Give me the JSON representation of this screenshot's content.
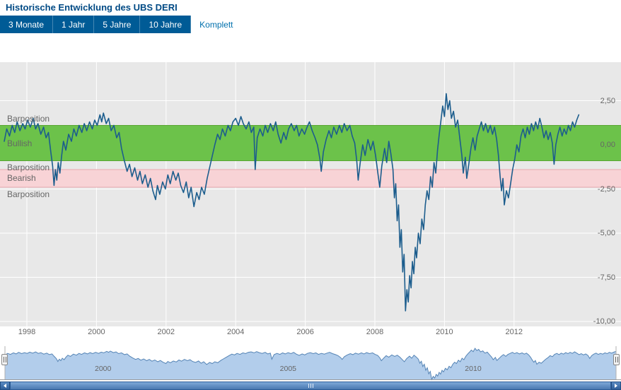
{
  "header": {
    "title": "Historische Entwicklung des UBS DERI"
  },
  "tabs": [
    {
      "label": "3 Monate",
      "active": false
    },
    {
      "label": "1 Jahr",
      "active": false
    },
    {
      "label": "5 Jahre",
      "active": false
    },
    {
      "label": "10 Jahre",
      "active": false
    },
    {
      "label": "Komplett",
      "active": true
    }
  ],
  "chart_data": {
    "type": "line",
    "title": "",
    "xlabel": "",
    "ylabel": "",
    "grid": true,
    "legend": "none",
    "xlim": [
      1997.2,
      2015.1
    ],
    "ylim": [
      -10.3,
      3.4
    ],
    "x_axis": {
      "ticks": [
        1998,
        2000,
        2002,
        2004,
        2006,
        2008,
        2010,
        2012
      ],
      "labels": [
        "1998",
        "2000",
        "2002",
        "2004",
        "2006",
        "2008",
        "2010",
        "2012"
      ]
    },
    "y_axis": {
      "ticks": [
        2.5,
        0,
        -2.5,
        -5,
        -7.5,
        -10
      ],
      "labels": [
        "2,50",
        "0,00",
        "-2,50",
        "-5,00",
        "-7,50",
        "-10,00"
      ]
    },
    "bands": [
      {
        "label": "Bullish",
        "from": -0.9,
        "to": 1.1,
        "color": "#6cc24a",
        "border_color": "#58a532"
      },
      {
        "label": "Bearish",
        "from": -2.4,
        "to": -1.4,
        "color": "#f8d3d6",
        "border_color": "#e8a8af"
      }
    ],
    "plot_lines": [
      {
        "label": "Barposition",
        "value": 1.1
      },
      {
        "label": "Barposition",
        "value": -1.4
      },
      {
        "label": "Barposition",
        "value": -2.4
      }
    ],
    "series": [
      {
        "name": "UBS DERI",
        "color": "#1c5d8d",
        "points": [
          [
            1997.35,
            0.2
          ],
          [
            1997.42,
            0.9
          ],
          [
            1997.5,
            0.5
          ],
          [
            1997.58,
            1.1
          ],
          [
            1997.65,
            0.7
          ],
          [
            1997.72,
            1.3
          ],
          [
            1997.8,
            0.8
          ],
          [
            1997.88,
            1.2
          ],
          [
            1997.95,
            0.9
          ],
          [
            1998.02,
            1.4
          ],
          [
            1998.1,
            1.0
          ],
          [
            1998.18,
            1.5
          ],
          [
            1998.25,
            0.9
          ],
          [
            1998.32,
            1.2
          ],
          [
            1998.4,
            0.6
          ],
          [
            1998.48,
            1.0
          ],
          [
            1998.55,
            0.4
          ],
          [
            1998.62,
            0.7
          ],
          [
            1998.68,
            -0.3
          ],
          [
            1998.74,
            -1.2
          ],
          [
            1998.78,
            -2.3
          ],
          [
            1998.82,
            -1.4
          ],
          [
            1998.86,
            -2.0
          ],
          [
            1998.9,
            -1.0
          ],
          [
            1998.95,
            -1.6
          ],
          [
            1999.0,
            -0.6
          ],
          [
            1999.05,
            0.2
          ],
          [
            1999.12,
            -0.3
          ],
          [
            1999.2,
            0.6
          ],
          [
            1999.28,
            0.2
          ],
          [
            1999.35,
            0.9
          ],
          [
            1999.42,
            0.5
          ],
          [
            1999.5,
            1.1
          ],
          [
            1999.58,
            0.7
          ],
          [
            1999.65,
            1.2
          ],
          [
            1999.72,
            0.8
          ],
          [
            1999.8,
            1.3
          ],
          [
            1999.88,
            0.9
          ],
          [
            1999.95,
            1.4
          ],
          [
            2000.02,
            1.1
          ],
          [
            2000.1,
            1.7
          ],
          [
            2000.15,
            1.3
          ],
          [
            2000.2,
            1.8
          ],
          [
            2000.28,
            1.2
          ],
          [
            2000.35,
            1.5
          ],
          [
            2000.42,
            0.8
          ],
          [
            2000.5,
            1.1
          ],
          [
            2000.58,
            0.4
          ],
          [
            2000.65,
            0.7
          ],
          [
            2000.72,
            -0.2
          ],
          [
            2000.8,
            -0.9
          ],
          [
            2000.88,
            -1.5
          ],
          [
            2000.95,
            -1.1
          ],
          [
            2001.02,
            -1.8
          ],
          [
            2001.1,
            -1.3
          ],
          [
            2001.18,
            -2.0
          ],
          [
            2001.25,
            -1.5
          ],
          [
            2001.32,
            -2.2
          ],
          [
            2001.4,
            -1.7
          ],
          [
            2001.48,
            -2.4
          ],
          [
            2001.55,
            -1.9
          ],
          [
            2001.62,
            -2.6
          ],
          [
            2001.7,
            -3.1
          ],
          [
            2001.75,
            -2.3
          ],
          [
            2001.82,
            -2.8
          ],
          [
            2001.9,
            -2.1
          ],
          [
            2001.98,
            -2.5
          ],
          [
            2002.05,
            -1.7
          ],
          [
            2002.12,
            -2.2
          ],
          [
            2002.2,
            -1.5
          ],
          [
            2002.28,
            -2.0
          ],
          [
            2002.35,
            -1.6
          ],
          [
            2002.42,
            -2.3
          ],
          [
            2002.5,
            -2.7
          ],
          [
            2002.58,
            -2.1
          ],
          [
            2002.65,
            -3.0
          ],
          [
            2002.72,
            -2.4
          ],
          [
            2002.8,
            -3.5
          ],
          [
            2002.88,
            -2.7
          ],
          [
            2002.95,
            -3.1
          ],
          [
            2003.02,
            -2.4
          ],
          [
            2003.1,
            -2.8
          ],
          [
            2003.18,
            -1.9
          ],
          [
            2003.25,
            -1.3
          ],
          [
            2003.32,
            -0.7
          ],
          [
            2003.4,
            0.0
          ],
          [
            2003.48,
            0.6
          ],
          [
            2003.55,
            0.3
          ],
          [
            2003.62,
            0.9
          ],
          [
            2003.7,
            0.5
          ],
          [
            2003.78,
            1.1
          ],
          [
            2003.85,
            0.8
          ],
          [
            2003.92,
            1.3
          ],
          [
            2004.0,
            1.5
          ],
          [
            2004.08,
            1.1
          ],
          [
            2004.15,
            1.6
          ],
          [
            2004.22,
            1.2
          ],
          [
            2004.3,
            0.9
          ],
          [
            2004.38,
            1.3
          ],
          [
            2004.45,
            0.7
          ],
          [
            2004.52,
            1.0
          ],
          [
            2004.56,
            -1.4
          ],
          [
            2004.62,
            0.4
          ],
          [
            2004.7,
            0.9
          ],
          [
            2004.78,
            0.5
          ],
          [
            2004.85,
            1.1
          ],
          [
            2004.92,
            0.7
          ],
          [
            2005.0,
            1.2
          ],
          [
            2005.08,
            0.8
          ],
          [
            2005.15,
            1.3
          ],
          [
            2005.22,
            0.6
          ],
          [
            2005.3,
            0.1
          ],
          [
            2005.38,
            0.7
          ],
          [
            2005.45,
            0.3
          ],
          [
            2005.52,
            0.9
          ],
          [
            2005.6,
            1.2
          ],
          [
            2005.68,
            0.8
          ],
          [
            2005.75,
            1.1
          ],
          [
            2005.82,
            0.5
          ],
          [
            2005.9,
            0.9
          ],
          [
            2005.98,
            0.6
          ],
          [
            2006.05,
            1.0
          ],
          [
            2006.12,
            1.3
          ],
          [
            2006.2,
            0.8
          ],
          [
            2006.28,
            0.4
          ],
          [
            2006.35,
            0.0
          ],
          [
            2006.42,
            -0.8
          ],
          [
            2006.46,
            -1.5
          ],
          [
            2006.52,
            -0.4
          ],
          [
            2006.6,
            0.3
          ],
          [
            2006.68,
            0.8
          ],
          [
            2006.75,
            0.4
          ],
          [
            2006.82,
            1.0
          ],
          [
            2006.9,
            0.6
          ],
          [
            2006.98,
            1.1
          ],
          [
            2007.05,
            0.7
          ],
          [
            2007.12,
            1.2
          ],
          [
            2007.2,
            0.8
          ],
          [
            2007.28,
            1.1
          ],
          [
            2007.35,
            0.5
          ],
          [
            2007.42,
            0.1
          ],
          [
            2007.48,
            -0.9
          ],
          [
            2007.52,
            -2.0
          ],
          [
            2007.58,
            -1.0
          ],
          [
            2007.65,
            0.0
          ],
          [
            2007.72,
            -0.6
          ],
          [
            2007.8,
            0.3
          ],
          [
            2007.88,
            -0.3
          ],
          [
            2007.95,
            0.2
          ],
          [
            2008.02,
            -0.6
          ],
          [
            2008.08,
            -1.5
          ],
          [
            2008.14,
            -2.4
          ],
          [
            2008.2,
            -1.2
          ],
          [
            2008.28,
            -0.2
          ],
          [
            2008.34,
            -1.0
          ],
          [
            2008.4,
            0.2
          ],
          [
            2008.46,
            -0.5
          ],
          [
            2008.52,
            -1.4
          ],
          [
            2008.56,
            -3.0
          ],
          [
            2008.6,
            -2.2
          ],
          [
            2008.64,
            -4.3
          ],
          [
            2008.68,
            -3.4
          ],
          [
            2008.72,
            -5.8
          ],
          [
            2008.76,
            -4.8
          ],
          [
            2008.8,
            -7.2
          ],
          [
            2008.84,
            -6.2
          ],
          [
            2008.88,
            -9.4
          ],
          [
            2008.92,
            -8.2
          ],
          [
            2008.96,
            -8.9
          ],
          [
            2009.0,
            -7.4
          ],
          [
            2009.04,
            -8.1
          ],
          [
            2009.08,
            -6.6
          ],
          [
            2009.12,
            -7.3
          ],
          [
            2009.16,
            -5.8
          ],
          [
            2009.2,
            -6.4
          ],
          [
            2009.25,
            -5.0
          ],
          [
            2009.3,
            -5.6
          ],
          [
            2009.35,
            -4.2
          ],
          [
            2009.4,
            -4.8
          ],
          [
            2009.45,
            -3.4
          ],
          [
            2009.5,
            -2.6
          ],
          [
            2009.55,
            -3.1
          ],
          [
            2009.6,
            -1.8
          ],
          [
            2009.65,
            -2.4
          ],
          [
            2009.7,
            -1.0
          ],
          [
            2009.75,
            -1.6
          ],
          [
            2009.8,
            -0.3
          ],
          [
            2009.85,
            0.6
          ],
          [
            2009.9,
            1.4
          ],
          [
            2009.95,
            2.2
          ],
          [
            2010.0,
            1.6
          ],
          [
            2010.05,
            2.9
          ],
          [
            2010.1,
            2.0
          ],
          [
            2010.15,
            2.5
          ],
          [
            2010.2,
            1.5
          ],
          [
            2010.26,
            1.9
          ],
          [
            2010.32,
            1.0
          ],
          [
            2010.38,
            1.4
          ],
          [
            2010.44,
            0.4
          ],
          [
            2010.5,
            -0.6
          ],
          [
            2010.54,
            -1.6
          ],
          [
            2010.6,
            -0.7
          ],
          [
            2010.64,
            -1.9
          ],
          [
            2010.7,
            -1.1
          ],
          [
            2010.76,
            -0.2
          ],
          [
            2010.82,
            0.4
          ],
          [
            2010.88,
            -0.3
          ],
          [
            2010.94,
            0.5
          ],
          [
            2011.0,
            0.9
          ],
          [
            2011.06,
            1.3
          ],
          [
            2011.12,
            0.8
          ],
          [
            2011.18,
            1.2
          ],
          [
            2011.25,
            0.7
          ],
          [
            2011.32,
            1.1
          ],
          [
            2011.38,
            0.6
          ],
          [
            2011.44,
            1.0
          ],
          [
            2011.5,
            0.3
          ],
          [
            2011.55,
            -0.6
          ],
          [
            2011.6,
            -1.8
          ],
          [
            2011.64,
            -2.6
          ],
          [
            2011.68,
            -1.9
          ],
          [
            2011.72,
            -3.4
          ],
          [
            2011.78,
            -2.6
          ],
          [
            2011.84,
            -3.0
          ],
          [
            2011.9,
            -2.2
          ],
          [
            2011.96,
            -1.4
          ],
          [
            2012.02,
            -0.8
          ],
          [
            2012.08,
            0.0
          ],
          [
            2012.14,
            -0.4
          ],
          [
            2012.2,
            0.5
          ],
          [
            2012.26,
            0.9
          ],
          [
            2012.32,
            0.4
          ],
          [
            2012.38,
            1.0
          ],
          [
            2012.44,
            0.6
          ],
          [
            2012.5,
            1.2
          ],
          [
            2012.56,
            0.8
          ],
          [
            2012.62,
            1.3
          ],
          [
            2012.68,
            0.9
          ],
          [
            2012.74,
            1.5
          ],
          [
            2012.8,
            1.0
          ],
          [
            2012.86,
            0.4
          ],
          [
            2012.92,
            0.8
          ],
          [
            2012.98,
            0.3
          ],
          [
            2013.04,
            0.7
          ],
          [
            2013.1,
            0.1
          ],
          [
            2013.15,
            -1.1
          ],
          [
            2013.2,
            0.0
          ],
          [
            2013.26,
            0.6
          ],
          [
            2013.32,
            1.0
          ],
          [
            2013.38,
            0.5
          ],
          [
            2013.44,
            0.9
          ],
          [
            2013.5,
            0.6
          ],
          [
            2013.56,
            1.1
          ],
          [
            2013.62,
            0.8
          ],
          [
            2013.68,
            1.3
          ],
          [
            2013.74,
            1.0
          ],
          [
            2013.8,
            1.4
          ],
          [
            2013.86,
            1.7
          ]
        ]
      }
    ]
  },
  "navigator": {
    "ticks": [
      2000,
      2005,
      2010
    ],
    "labels": [
      "2000",
      "2005",
      "2010"
    ],
    "fill_color": "#b2cdeb",
    "line_color": "#5584b5"
  },
  "scrollbar": {
    "left_arrow_icon": "left-arrow",
    "right_arrow_icon": "right-arrow",
    "grip_icon": "grip-lines"
  },
  "colors": {
    "accent": "#005b96",
    "title": "#004a85",
    "chart_background": "#e8e8e8",
    "scrollbar": "#3a6ba8"
  }
}
